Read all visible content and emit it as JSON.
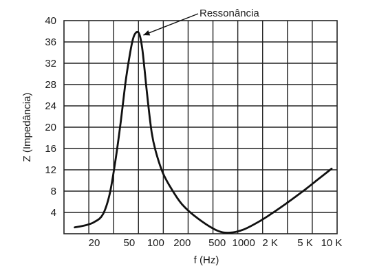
{
  "chart_data": {
    "type": "line",
    "title": "",
    "xlabel": "f (Hz)",
    "ylabel": "Z (Impedância)",
    "x_scale": "log",
    "x_tick_labels": [
      "20",
      "50",
      "100",
      "200",
      "500",
      "1000",
      "2 K",
      "5 K",
      "10 K"
    ],
    "x_tick_values": [
      20,
      50,
      100,
      200,
      500,
      1000,
      2000,
      5000,
      10000
    ],
    "y_ticks": [
      4,
      8,
      12,
      16,
      20,
      24,
      28,
      32,
      36,
      40
    ],
    "ylim": [
      0,
      40
    ],
    "grid": true,
    "series": [
      {
        "x": [
          12,
          16,
          20,
          25,
          30,
          35,
          40,
          45,
          50,
          55,
          60,
          65,
          70,
          75,
          80,
          90,
          100,
          120,
          150,
          200,
          300,
          500,
          700,
          1000,
          1500,
          2000,
          3000,
          5000,
          7000,
          10000
        ],
        "values": [
          1.2,
          1.6,
          2.2,
          3.6,
          7.5,
          14,
          21,
          28,
          33,
          36.5,
          37.8,
          37.5,
          35,
          30.5,
          26,
          19,
          15.5,
          11.5,
          8.5,
          5.5,
          2.9,
          0.6,
          0.2,
          0.8,
          2.3,
          3.6,
          5.6,
          8.3,
          10.2,
          12.2
        ]
      }
    ],
    "annotations": [
      {
        "text": "Ressonância",
        "x": 65,
        "y": 37.8
      }
    ]
  }
}
